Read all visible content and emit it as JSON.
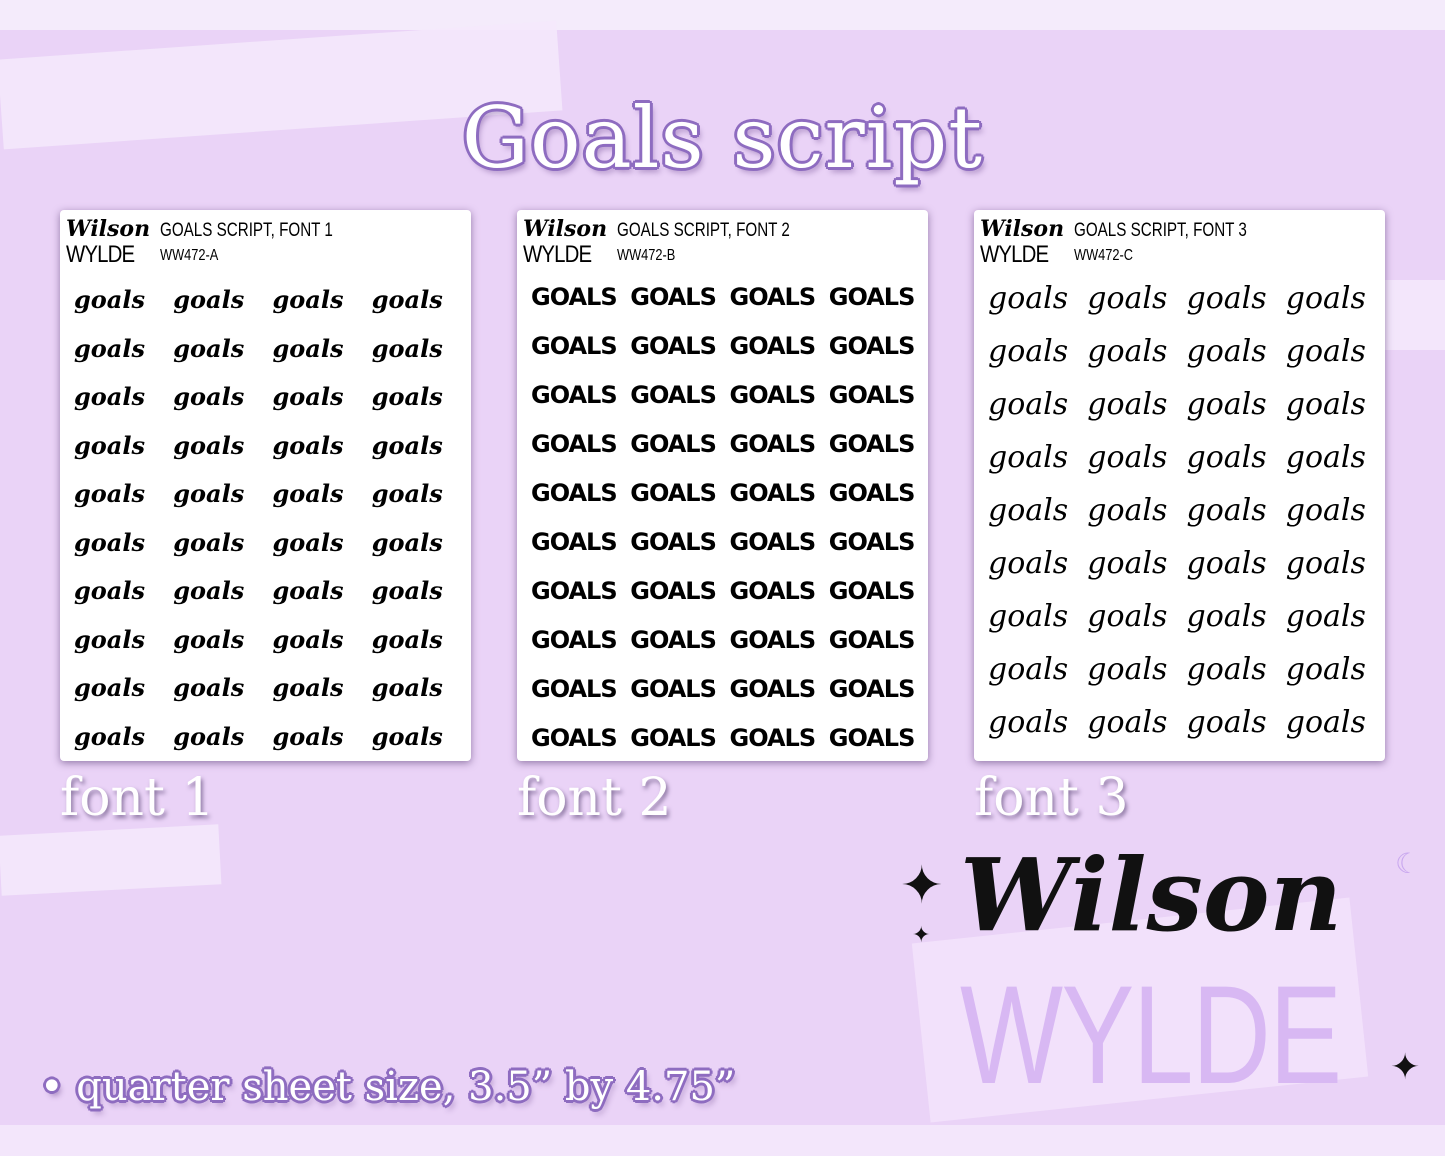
{
  "title": "Goals script",
  "sheets": [
    {
      "logo_top": "Wilson",
      "logo_bottom": "WYLDE",
      "name": "GOALS SCRIPT, FONT 1",
      "code": "WW472-A",
      "word": "goals",
      "label": "font 1"
    },
    {
      "logo_top": "Wilson",
      "logo_bottom": "WYLDE",
      "name": "GOALS SCRIPT, FONT 2",
      "code": "WW472-B",
      "word": "GOALS",
      "label": "font 2"
    },
    {
      "logo_top": "Wilson",
      "logo_bottom": "WYLDE",
      "name": "GOALS SCRIPT, FONT 3",
      "code": "WW472-C",
      "word": "goals",
      "label": "font 3"
    }
  ],
  "size_note": "• quarter sheet size, 3.5” by 4.75”",
  "brand": {
    "top": "Wilson",
    "bottom": "WYLDE"
  },
  "colors": {
    "background": "#ead3f7",
    "outline": "#8e6cc0",
    "brand_lilac": "#d8b8f3"
  }
}
